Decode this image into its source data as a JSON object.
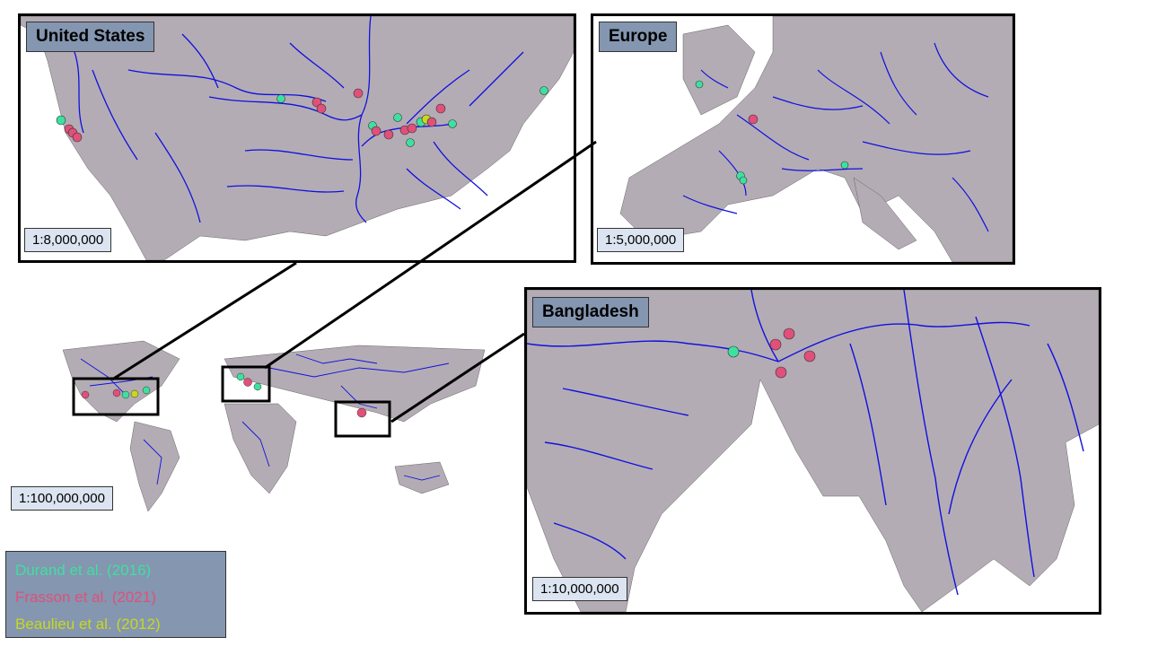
{
  "panels": {
    "us": {
      "title": "United States",
      "scale": "1:8,000,000"
    },
    "europe": {
      "title": "Europe",
      "scale": "1:5,000,000"
    },
    "bangladesh": {
      "title": "Bangladesh",
      "scale": "1:10,000,000"
    },
    "world": {
      "scale": "1:100,000,000"
    }
  },
  "legend": {
    "items": [
      {
        "label": "Durand et al. (2016)",
        "color": "#3ee0a0"
      },
      {
        "label": "Frasson et al. (2021)",
        "color": "#e0507a"
      },
      {
        "label": "Beaulieu et al. (2012)",
        "color": "#c8d820"
      }
    ]
  },
  "colors": {
    "land": "#b4acb4",
    "river": "#1010e0",
    "frame": "#000000",
    "title_bg": "#8496b0",
    "scale_bg": "#dbe4f0"
  }
}
